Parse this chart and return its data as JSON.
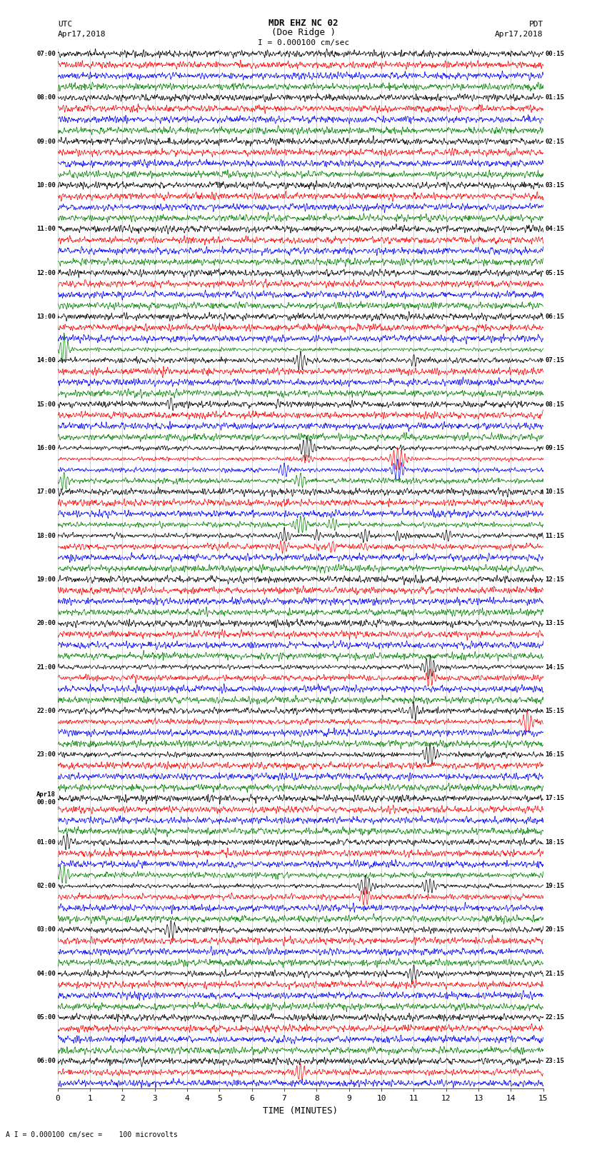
{
  "title_line1": "MDR EHZ NC 02",
  "title_line2": "(Doe Ridge )",
  "scale_label": "I = 0.000100 cm/sec",
  "bottom_label": "A I = 0.000100 cm/sec =    100 microvolts",
  "xlabel": "TIME (MINUTES)",
  "left_header_line1": "UTC",
  "left_header_line2": "Apr17,2018",
  "right_header_line1": "PDT",
  "right_header_line2": "Apr17,2018",
  "left_times": [
    "07:00",
    "",
    "",
    "",
    "08:00",
    "",
    "",
    "",
    "09:00",
    "",
    "",
    "",
    "10:00",
    "",
    "",
    "",
    "11:00",
    "",
    "",
    "",
    "12:00",
    "",
    "",
    "",
    "13:00",
    "",
    "",
    "",
    "14:00",
    "",
    "",
    "",
    "15:00",
    "",
    "",
    "",
    "16:00",
    "",
    "",
    "",
    "17:00",
    "",
    "",
    "",
    "18:00",
    "",
    "",
    "",
    "19:00",
    "",
    "",
    "",
    "20:00",
    "",
    "",
    "",
    "21:00",
    "",
    "",
    "",
    "22:00",
    "",
    "",
    "",
    "23:00",
    "",
    "",
    "",
    "Apr18\n00:00",
    "",
    "",
    "",
    "01:00",
    "",
    "",
    "",
    "02:00",
    "",
    "",
    "",
    "03:00",
    "",
    "",
    "",
    "04:00",
    "",
    "",
    "",
    "05:00",
    "",
    "",
    "",
    "06:00",
    "",
    ""
  ],
  "right_times": [
    "00:15",
    "",
    "",
    "",
    "01:15",
    "",
    "",
    "",
    "02:15",
    "",
    "",
    "",
    "03:15",
    "",
    "",
    "",
    "04:15",
    "",
    "",
    "",
    "05:15",
    "",
    "",
    "",
    "06:15",
    "",
    "",
    "",
    "07:15",
    "",
    "",
    "",
    "08:15",
    "",
    "",
    "",
    "09:15",
    "",
    "",
    "",
    "10:15",
    "",
    "",
    "",
    "11:15",
    "",
    "",
    "",
    "12:15",
    "",
    "",
    "",
    "13:15",
    "",
    "",
    "",
    "14:15",
    "",
    "",
    "",
    "15:15",
    "",
    "",
    "",
    "16:15",
    "",
    "",
    "",
    "17:15",
    "",
    "",
    "",
    "18:15",
    "",
    "",
    "",
    "19:15",
    "",
    "",
    "",
    "20:15",
    "",
    "",
    "",
    "21:15",
    "",
    "",
    "",
    "22:15",
    "",
    "",
    "",
    "23:15",
    "",
    ""
  ],
  "n_rows": 95,
  "colors": [
    "black",
    "red",
    "blue",
    "green"
  ],
  "bg_color": "#ffffff",
  "trace_color_sequence": [
    0,
    1,
    2,
    3
  ],
  "xlim": [
    0,
    15
  ],
  "xticks": [
    0,
    1,
    2,
    3,
    4,
    5,
    6,
    7,
    8,
    9,
    10,
    11,
    12,
    13,
    14,
    15
  ],
  "figsize": [
    8.5,
    16.13
  ],
  "dpi": 100,
  "grid_color": "#808080",
  "hline_color": "#c0c0c0"
}
